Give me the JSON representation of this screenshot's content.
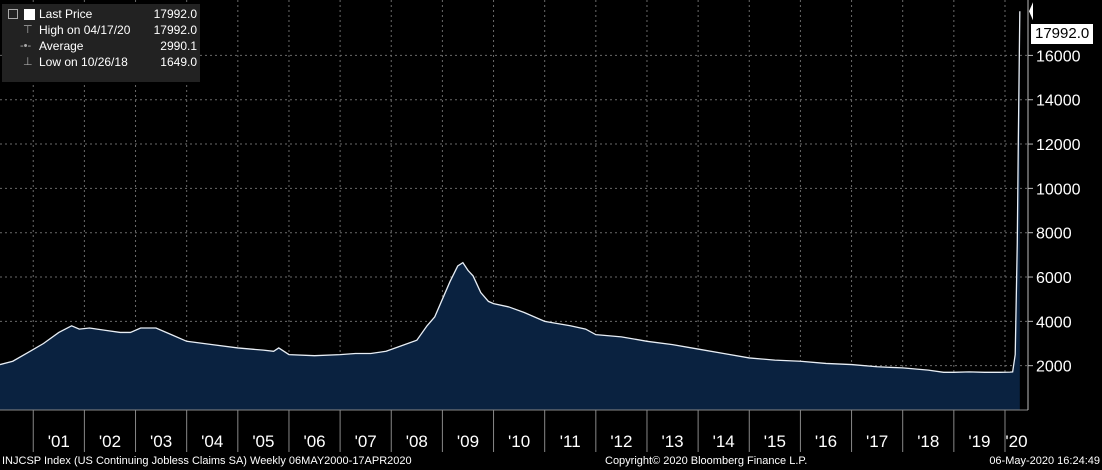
{
  "legend": {
    "last_price_label": "Last Price",
    "last_price_value": "17992.0",
    "high_label": "High on 04/17/20",
    "high_value": "17992.0",
    "average_label": "Average",
    "average_value": "2990.1",
    "low_label": "Low on 10/26/18",
    "low_value": "1649.0"
  },
  "last_value_box": "17992.0",
  "footer": {
    "left": "INJCSP Index (US Continuing Jobless Claims SA)  Weekly 06MAY2000-17APR2020",
    "center": "Copyright© 2020 Bloomberg Finance L.P.",
    "right": "06-May-2020 16:24:49"
  },
  "colors": {
    "background": "#000000",
    "fill": "#0a2240",
    "line": "#e8eef5",
    "grid": "#6a6a6a"
  },
  "chart_data": {
    "type": "area",
    "title": "",
    "xlabel": "",
    "ylabel": "",
    "xlim": [
      2000.35,
      2020.45
    ],
    "ylim": [
      0,
      18500
    ],
    "grid": true,
    "legend_position": "top-left",
    "y_axis_position": "right",
    "yticks": [
      2000,
      4000,
      6000,
      8000,
      10000,
      12000,
      14000,
      16000
    ],
    "ytick_labels": [
      "2000",
      "4000",
      "6000",
      "8000",
      "10000",
      "12000",
      "14000",
      "16000"
    ],
    "xtick_labels": [
      "'01",
      "'02",
      "'03",
      "'04",
      "'05",
      "'06",
      "'07",
      "'08",
      "'09",
      "'10",
      "'11",
      "'12",
      "'13",
      "'14",
      "'15",
      "'16",
      "'17",
      "'18",
      "'19",
      "'20"
    ],
    "series": [
      {
        "name": "Last Price",
        "x": [
          2000.35,
          2000.6,
          2000.9,
          2001.2,
          2001.5,
          2001.75,
          2001.9,
          2002.1,
          2002.4,
          2002.7,
          2002.9,
          2003.1,
          2003.4,
          2003.7,
          2004.0,
          2004.5,
          2005.0,
          2005.5,
          2005.7,
          2005.8,
          2006.0,
          2006.5,
          2007.0,
          2007.3,
          2007.6,
          2007.9,
          2008.2,
          2008.5,
          2008.7,
          2008.85,
          2009.0,
          2009.15,
          2009.3,
          2009.4,
          2009.5,
          2009.6,
          2009.75,
          2009.9,
          2010.0,
          2010.3,
          2010.6,
          2011.0,
          2011.5,
          2011.8,
          2012.0,
          2012.5,
          2013.0,
          2013.5,
          2014.0,
          2014.5,
          2015.0,
          2015.5,
          2016.0,
          2016.5,
          2017.0,
          2017.5,
          2018.0,
          2018.5,
          2018.8,
          2019.0,
          2019.3,
          2019.6,
          2019.9,
          2020.1,
          2020.15,
          2020.2,
          2020.24,
          2020.26,
          2020.29
        ],
        "y": [
          2050,
          2200,
          2600,
          3000,
          3500,
          3800,
          3650,
          3700,
          3600,
          3500,
          3500,
          3700,
          3700,
          3400,
          3100,
          2950,
          2800,
          2700,
          2650,
          2800,
          2500,
          2450,
          2500,
          2550,
          2550,
          2650,
          2900,
          3150,
          3800,
          4200,
          5000,
          5800,
          6500,
          6650,
          6300,
          6050,
          5300,
          4900,
          4800,
          4650,
          4400,
          4000,
          3800,
          3650,
          3400,
          3300,
          3100,
          2950,
          2750,
          2550,
          2350,
          2250,
          2200,
          2100,
          2050,
          1950,
          1900,
          1800,
          1700,
          1700,
          1720,
          1700,
          1700,
          1710,
          1720,
          2500,
          7500,
          12000,
          17992
        ]
      }
    ]
  }
}
